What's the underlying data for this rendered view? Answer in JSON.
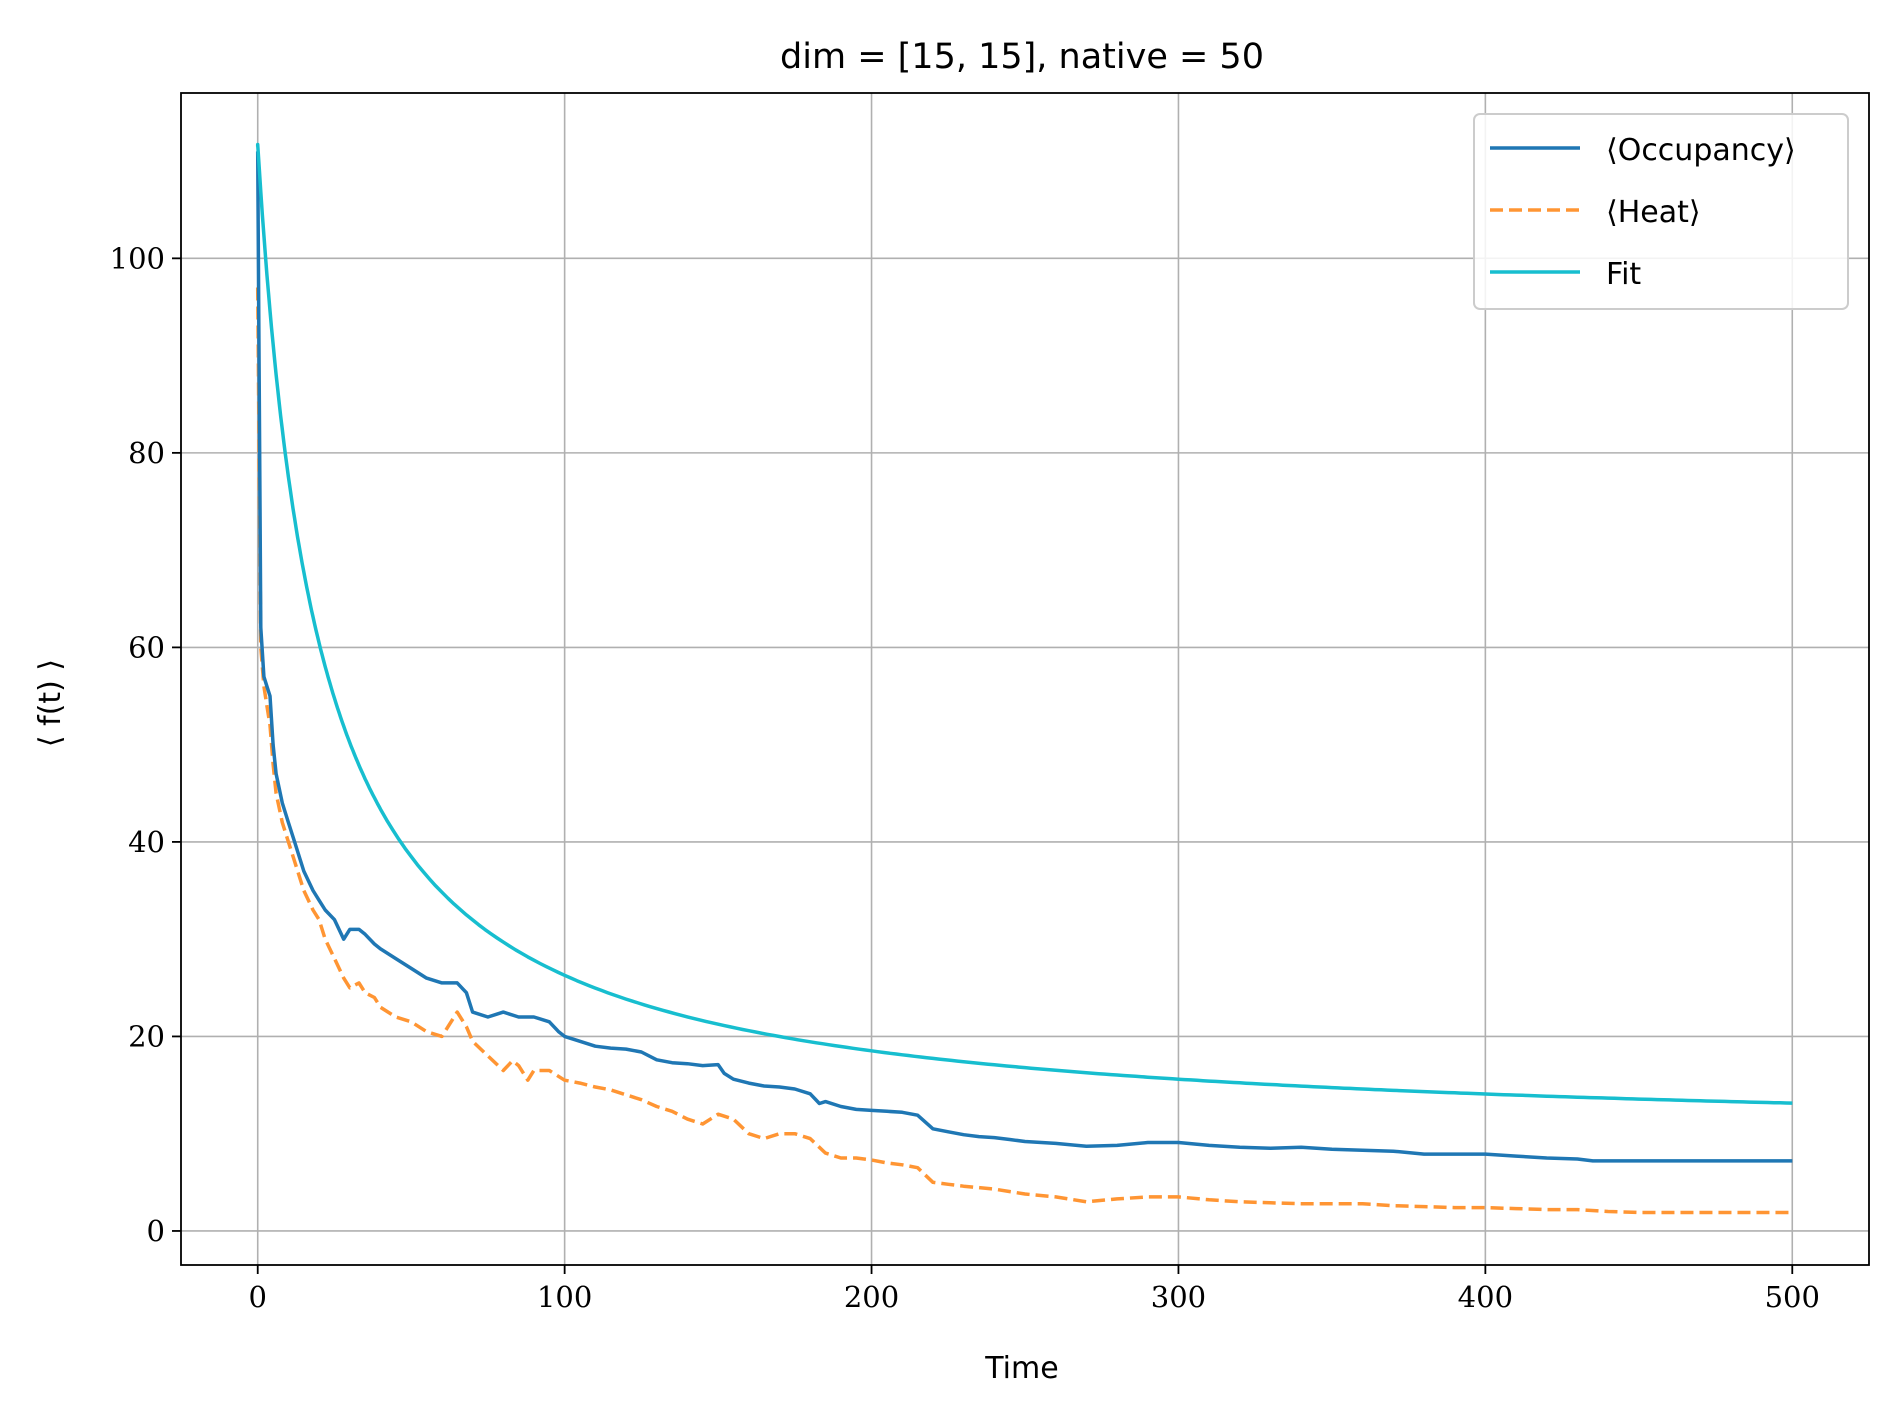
{
  "chart_data": {
    "type": "line",
    "title": "dim = [15, 15], native = 50",
    "xlabel": "Time",
    "ylabel": "⟨ f(t) ⟩",
    "xlim": [
      -25,
      525
    ],
    "ylim": [
      -3.5,
      117
    ],
    "xticks": [
      0,
      100,
      200,
      300,
      400,
      500
    ],
    "yticks": [
      0,
      20,
      40,
      60,
      80,
      100
    ],
    "grid": true,
    "legend_position": "top-right",
    "series": [
      {
        "name": "⟨Occupancy⟩",
        "color": "#1f77b4",
        "style": "solid",
        "x": [
          0,
          1,
          2,
          3,
          4,
          5,
          6,
          8,
          10,
          12,
          15,
          18,
          20,
          22,
          25,
          28,
          30,
          33,
          35,
          38,
          40,
          45,
          50,
          55,
          60,
          65,
          68,
          70,
          75,
          80,
          85,
          90,
          95,
          98,
          100,
          105,
          110,
          115,
          120,
          125,
          130,
          135,
          140,
          145,
          150,
          152,
          155,
          160,
          165,
          170,
          175,
          180,
          183,
          185,
          190,
          195,
          200,
          205,
          210,
          215,
          220,
          225,
          230,
          235,
          240,
          245,
          250,
          260,
          270,
          280,
          290,
          300,
          310,
          320,
          330,
          340,
          350,
          360,
          370,
          380,
          390,
          400,
          410,
          420,
          430,
          435,
          440,
          450,
          460,
          470,
          480,
          490,
          500
        ],
        "y": [
          111,
          62,
          57,
          56,
          55,
          50,
          47,
          44,
          42,
          40,
          37,
          35,
          34,
          33,
          32,
          30,
          31,
          31,
          30.5,
          29.5,
          29,
          28,
          27,
          26,
          25.5,
          25.5,
          24.5,
          22.5,
          22,
          22.5,
          22,
          22,
          21.5,
          20.5,
          20,
          19.5,
          19,
          18.8,
          18.7,
          18.4,
          17.6,
          17.3,
          17.2,
          17.0,
          17.1,
          16.2,
          15.6,
          15.2,
          14.9,
          14.8,
          14.6,
          14.1,
          13.1,
          13.3,
          12.8,
          12.5,
          12.4,
          12.3,
          12.2,
          11.9,
          10.5,
          10.2,
          9.9,
          9.7,
          9.6,
          9.4,
          9.2,
          9.0,
          8.7,
          8.8,
          9.1,
          9.1,
          8.8,
          8.6,
          8.5,
          8.6,
          8.4,
          8.3,
          8.2,
          7.9,
          7.9,
          7.9,
          7.7,
          7.5,
          7.4,
          7.2,
          7.2,
          7.2,
          7.2,
          7.2,
          7.2,
          7.2,
          7.2
        ]
      },
      {
        "name": "⟨Heat⟩",
        "color": "#ff9533",
        "style": "dashed",
        "x": [
          0,
          1,
          2,
          3,
          4,
          5,
          6,
          8,
          10,
          12,
          15,
          18,
          20,
          22,
          25,
          28,
          30,
          33,
          35,
          38,
          40,
          45,
          50,
          55,
          60,
          62,
          65,
          68,
          70,
          75,
          80,
          83,
          85,
          88,
          90,
          95,
          100,
          105,
          110,
          115,
          120,
          125,
          130,
          135,
          140,
          145,
          150,
          155,
          160,
          165,
          170,
          175,
          180,
          185,
          190,
          195,
          200,
          205,
          210,
          215,
          220,
          225,
          230,
          240,
          250,
          260,
          270,
          280,
          290,
          300,
          310,
          320,
          330,
          340,
          350,
          360,
          370,
          380,
          390,
          400,
          410,
          420,
          430,
          440,
          450,
          460,
          470,
          480,
          490,
          500
        ],
        "y": [
          97,
          60,
          56,
          54,
          52,
          48,
          45,
          42,
          40,
          38,
          35,
          33,
          32,
          30,
          28,
          26,
          25,
          25.5,
          24.5,
          24,
          23,
          22,
          21.5,
          20.5,
          20,
          21,
          22.5,
          21,
          19.5,
          18,
          16.5,
          17.5,
          17,
          15.5,
          16.5,
          16.5,
          15.5,
          15.2,
          14.8,
          14.5,
          14,
          13.5,
          12.8,
          12.3,
          11.5,
          11.0,
          12.0,
          11.5,
          10.0,
          9.5,
          10.0,
          10.0,
          9.5,
          8.0,
          7.5,
          7.5,
          7.3,
          7.0,
          6.8,
          6.5,
          5.0,
          4.8,
          4.6,
          4.3,
          3.8,
          3.5,
          3.0,
          3.3,
          3.5,
          3.5,
          3.2,
          3.0,
          2.9,
          2.8,
          2.8,
          2.8,
          2.6,
          2.5,
          2.4,
          2.4,
          2.3,
          2.2,
          2.2,
          2.0,
          1.9,
          1.9,
          1.9,
          1.9,
          1.9,
          1.9
        ]
      },
      {
        "name": "Fit",
        "color": "#17becf",
        "style": "solid",
        "model": "y = 9.2 + 2050 / (t + 20)"
      }
    ]
  }
}
